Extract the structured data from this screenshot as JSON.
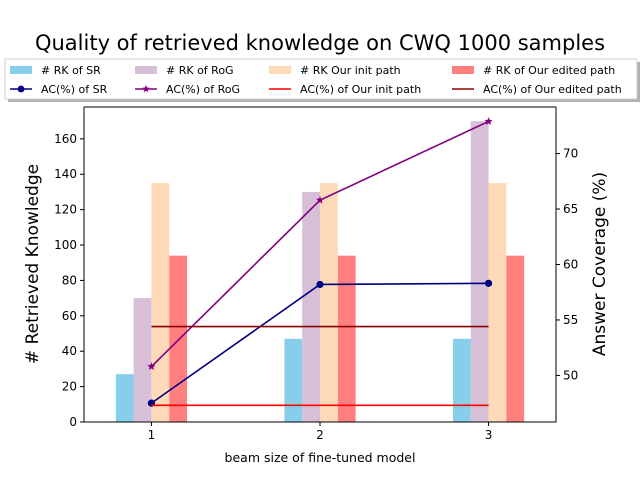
{
  "chart_data": {
    "type": "bar",
    "title": "Quality of retrieved knowledge on CWQ 1000 samples",
    "xlabel": "beam size of fine-tuned model",
    "ylabel": "# Retrieved Knowledge",
    "y2label": "Answer Coverage (%)",
    "categories": [
      "1",
      "2",
      "3"
    ],
    "ylim": [
      0,
      178
    ],
    "y2lim": [
      45.8,
      74.2
    ],
    "yticks": [
      "0",
      "20",
      "40",
      "60",
      "80",
      "100",
      "120",
      "140",
      "160"
    ],
    "y2ticks": [
      "50",
      "55",
      "60",
      "65",
      "70"
    ],
    "bar_series": [
      {
        "name": "# RK of SR",
        "color": "#87ceeb",
        "values": [
          27,
          47,
          47
        ]
      },
      {
        "name": "# RK of RoG",
        "color": "#d8bfd8",
        "values": [
          70,
          130,
          170
        ]
      },
      {
        "name": "# RK Our init path",
        "color": "#ffdab9",
        "values": [
          135,
          135,
          135
        ]
      },
      {
        "name": "# RK of Our edited path",
        "color": "#ff7f7f",
        "values": [
          94,
          94,
          94
        ]
      }
    ],
    "line_series": [
      {
        "name": "AC(%) of SR",
        "color": "#000080",
        "marker": "circle",
        "values": [
          47.5,
          58.2,
          58.3
        ]
      },
      {
        "name": "AC(%) of RoG",
        "color": "#800080",
        "marker": "star",
        "values": [
          50.8,
          65.8,
          72.9
        ]
      },
      {
        "name": "AC(%) of Our init path",
        "color": "#ff0000",
        "marker": "none",
        "values": [
          47.3,
          47.3,
          47.3
        ]
      },
      {
        "name": "AC(%) of Our edited path",
        "color": "#8b0000",
        "marker": "none",
        "values": [
          54.4,
          54.4,
          54.4
        ]
      }
    ],
    "legend_position": "top"
  }
}
